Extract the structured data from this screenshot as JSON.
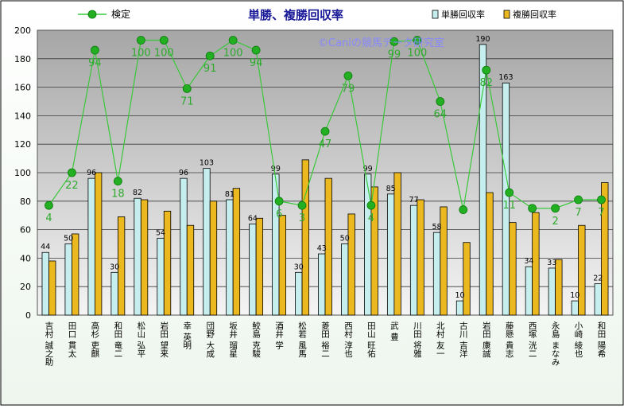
{
  "chart_data": {
    "type": "bar",
    "title": "単勝、複勝回収率",
    "watermark": "©Caniの競馬データ研究室",
    "ylim": [
      0,
      200
    ],
    "yticks": [
      0,
      20,
      40,
      60,
      80,
      100,
      120,
      140,
      160,
      180,
      200
    ],
    "grid": true,
    "legend_position": "top",
    "categories": [
      "吉村 誠之助",
      "田口 貫太",
      "高杉 吏麒",
      "和田 竜二",
      "松山 弘平",
      "岩田 望来",
      "幸 英明",
      "団野 大成",
      "坂井 瑠星",
      "鮫島 克駿",
      "酒井 学",
      "松若 風馬",
      "菱田 裕二",
      "西村 淳也",
      "田山 旺佑",
      "武 豊",
      "川田 将雅",
      "北村 友一",
      "古川 吉洋",
      "岩田 康誠",
      "藤懸 貴志",
      "西塚 洸二",
      "永島 まなみ",
      "小崎 綾也",
      "和田 陽希"
    ],
    "series": [
      {
        "name": "単勝回収率",
        "color": "#c6eeee",
        "values": [
          44,
          50,
          96,
          30,
          82,
          54,
          96,
          103,
          81,
          64,
          99,
          30,
          43,
          50,
          99,
          85,
          77,
          58,
          10,
          190,
          163,
          34,
          33,
          10,
          22
        ]
      },
      {
        "name": "複勝回収率",
        "color": "#ecb820",
        "values": [
          38,
          57,
          100,
          69,
          81,
          73,
          63,
          80,
          89,
          68,
          70,
          109,
          96,
          71,
          90,
          100,
          81,
          76,
          51,
          86,
          65,
          72,
          39,
          63,
          93
        ]
      }
    ],
    "line_series": {
      "name": "検定",
      "color": "#39c83a",
      "values": [
        4,
        22,
        94,
        18,
        100,
        100,
        71,
        91,
        100,
        94,
        6,
        3,
        47,
        79,
        4,
        99,
        100,
        64,
        1,
        82,
        11,
        1,
        2,
        7,
        7
      ],
      "labels": [
        "4",
        "22",
        "94",
        "18",
        "100",
        "100",
        "71",
        "91",
        "100",
        "94",
        "6",
        "3",
        "47",
        "79",
        "4",
        "99",
        "100",
        "64",
        "",
        "82",
        "11",
        "",
        "2",
        "7",
        "7"
      ]
    },
    "bar_labels": [
      "44",
      "50",
      "96",
      "30",
      "82",
      "54",
      "96",
      "103",
      "81",
      "64",
      "99",
      "30",
      "43",
      "50",
      "99",
      "85",
      "77",
      "58",
      "10",
      "190",
      "163",
      "34",
      "33",
      "10",
      "22"
    ],
    "line_y_on_axis": [
      77,
      100,
      186,
      94,
      193,
      193,
      159,
      182,
      193,
      186,
      80,
      77,
      129,
      168,
      77,
      192,
      193,
      150,
      74,
      172,
      86,
      75,
      75,
      81,
      81
    ]
  }
}
